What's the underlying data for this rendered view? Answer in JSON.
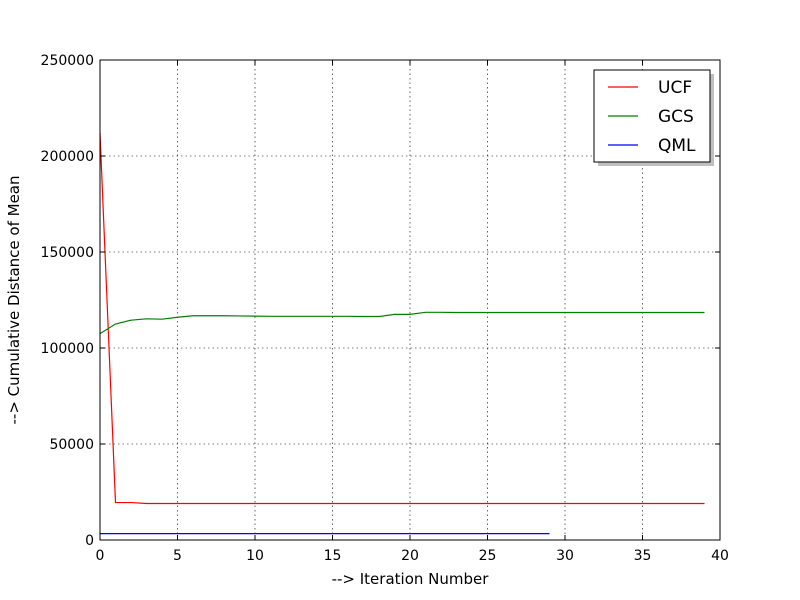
{
  "chart_data": {
    "type": "line",
    "title": "",
    "xlabel": "--> Iteration Number",
    "ylabel": "--> Cumulative Distance of Mean",
    "xlim": [
      0,
      40
    ],
    "ylim": [
      0,
      250000
    ],
    "xticks": [
      0,
      5,
      10,
      15,
      20,
      25,
      30,
      35,
      40
    ],
    "yticks": [
      0,
      50000,
      100000,
      150000,
      200000,
      250000
    ],
    "xtick_labels": [
      "0",
      "5",
      "10",
      "15",
      "20",
      "25",
      "30",
      "35",
      "40"
    ],
    "ytick_labels": [
      "0",
      "50000",
      "100000",
      "150000",
      "200000",
      "250000"
    ],
    "grid": true,
    "legend_position": "top-right",
    "series": [
      {
        "name": "UCF",
        "color": "#ff0000",
        "x": [
          0,
          1,
          2,
          3,
          4,
          5,
          6,
          7,
          8,
          9,
          10,
          11,
          12,
          13,
          14,
          15,
          16,
          17,
          18,
          19,
          20,
          21,
          22,
          23,
          24,
          25,
          26,
          27,
          28,
          29,
          30,
          31,
          32,
          33,
          34,
          35,
          36,
          37,
          38,
          39
        ],
        "values": [
          212000,
          19500,
          19500,
          19000,
          19000,
          19000,
          19000,
          19000,
          19000,
          19000,
          19000,
          19000,
          19000,
          19000,
          19000,
          19000,
          19000,
          19000,
          19000,
          19000,
          19000,
          19000,
          19000,
          19000,
          19000,
          19000,
          19000,
          19000,
          19000,
          19000,
          19000,
          19000,
          19000,
          19000,
          19000,
          19000,
          19000,
          19000,
          19000,
          19000
        ]
      },
      {
        "name": "GCS",
        "color": "#008000",
        "x": [
          0,
          1,
          2,
          3,
          4,
          5,
          6,
          7,
          8,
          9,
          10,
          11,
          12,
          13,
          14,
          15,
          16,
          17,
          18,
          19,
          20,
          21,
          22,
          23,
          24,
          25,
          26,
          27,
          28,
          29,
          30,
          31,
          32,
          33,
          34,
          35,
          36,
          37,
          38,
          39
        ],
        "values": [
          107500,
          112500,
          114500,
          115200,
          115000,
          116000,
          116800,
          116800,
          116800,
          116700,
          116600,
          116500,
          116500,
          116500,
          116500,
          116500,
          116500,
          116400,
          116400,
          117500,
          117500,
          118600,
          118600,
          118500,
          118500,
          118500,
          118500,
          118500,
          118500,
          118500,
          118500,
          118500,
          118500,
          118500,
          118500,
          118500,
          118500,
          118500,
          118500,
          118500
        ]
      },
      {
        "name": "QML",
        "color": "#0000ff",
        "x": [
          0,
          1,
          2,
          3,
          4,
          5,
          6,
          7,
          8,
          9,
          10,
          11,
          12,
          13,
          14,
          15,
          16,
          17,
          18,
          19,
          20,
          21,
          22,
          23,
          24,
          25,
          26,
          27,
          28,
          29
        ],
        "values": [
          3300,
          3300,
          3300,
          3300,
          3300,
          3300,
          3300,
          3300,
          3300,
          3300,
          3300,
          3300,
          3300,
          3300,
          3300,
          3300,
          3300,
          3300,
          3300,
          3300,
          3300,
          3300,
          3300,
          3300,
          3300,
          3300,
          3300,
          3300,
          3300,
          3300
        ]
      }
    ]
  }
}
